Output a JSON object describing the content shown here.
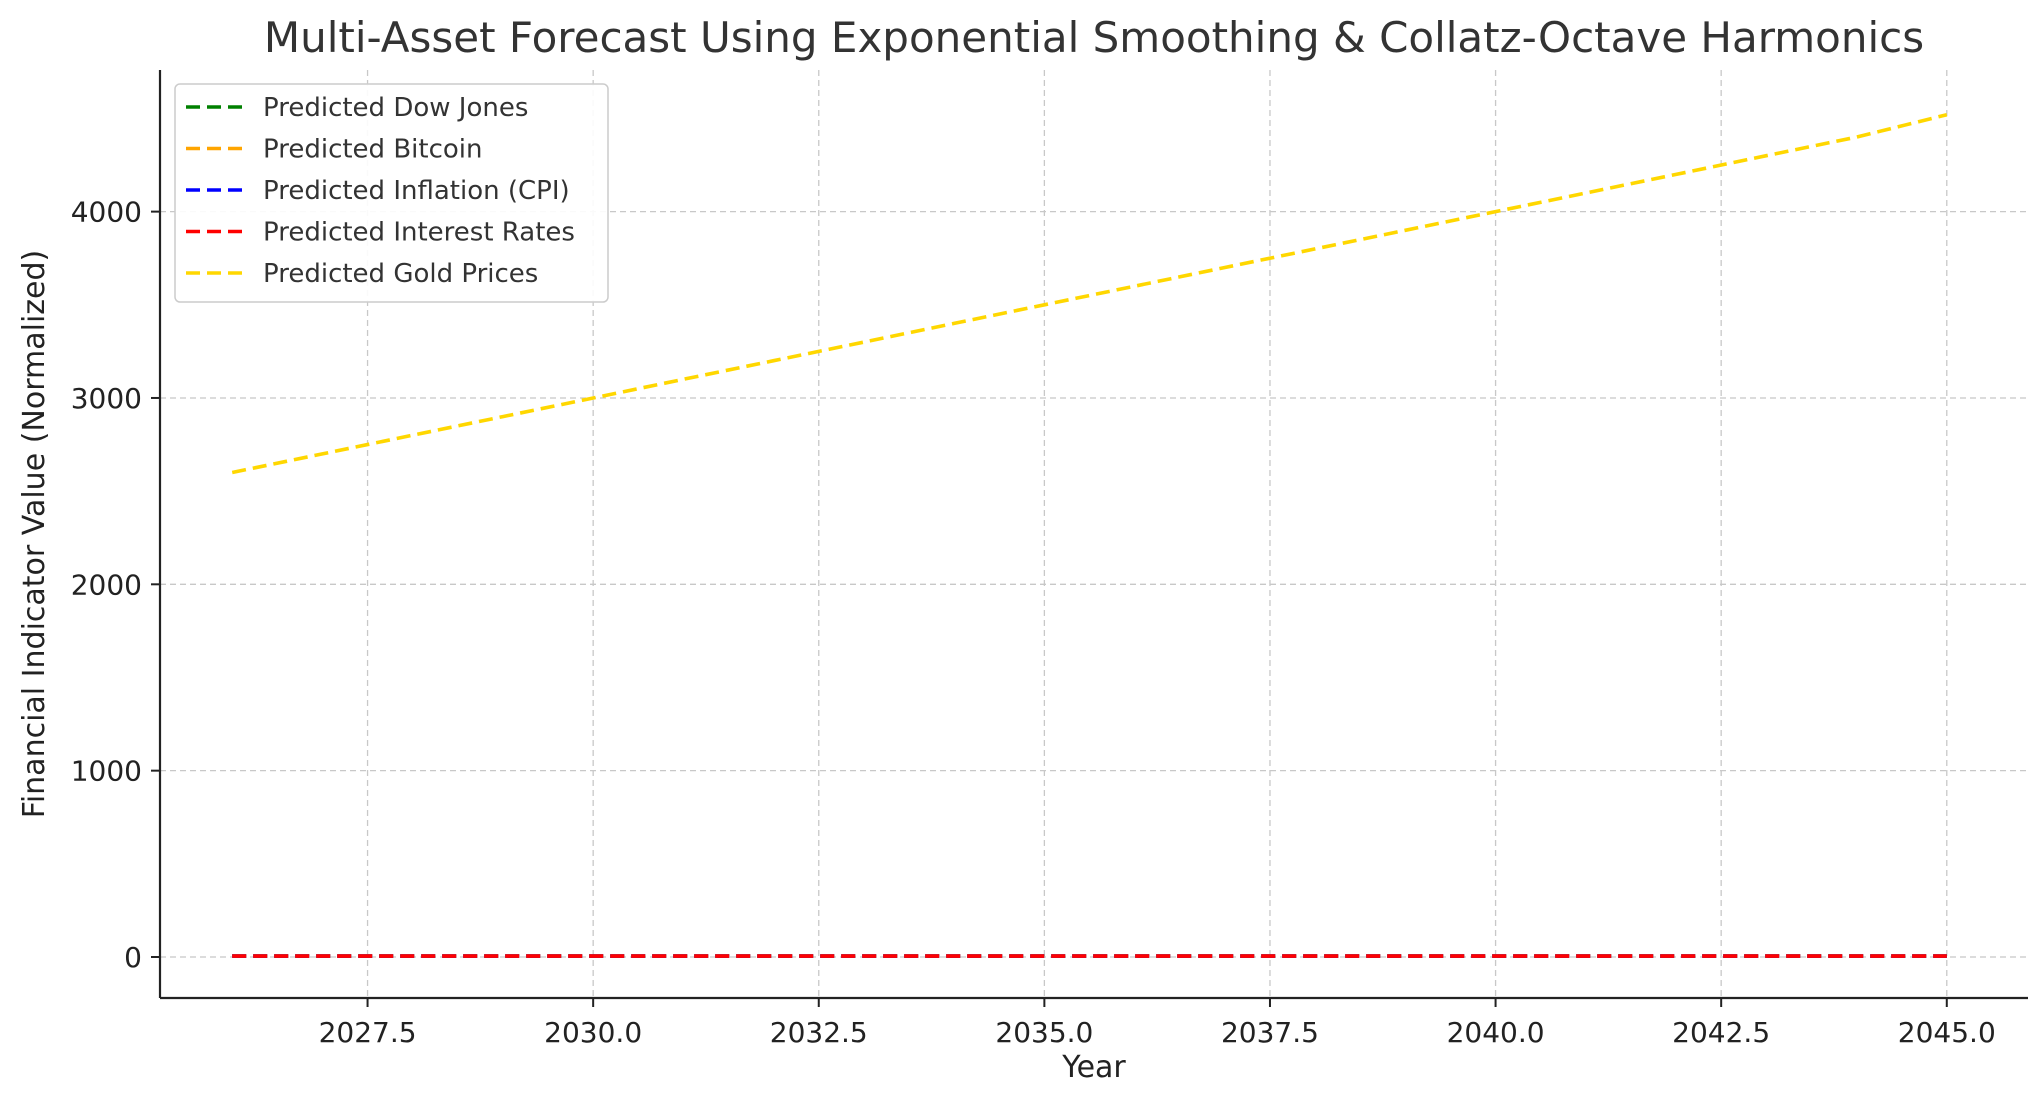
{
  "chart_data": {
    "type": "line",
    "title": "Multi-Asset Forecast Using Exponential Smoothing & Collatz-Octave Harmonics",
    "xlabel": "Year",
    "ylabel": "Financial Indicator Value (Normalized)",
    "xlim": [
      2025.2,
      2045.9
    ],
    "ylim": [
      -220,
      4760
    ],
    "x_ticks": [
      2027.5,
      2030.0,
      2032.5,
      2035.0,
      2037.5,
      2040.0,
      2042.5,
      2045.0
    ],
    "x_tick_labels": [
      "2027.5",
      "2030.0",
      "2032.5",
      "2035.0",
      "2037.5",
      "2040.0",
      "2042.5",
      "2045.0"
    ],
    "y_ticks": [
      0,
      1000,
      2000,
      3000,
      4000
    ],
    "y_tick_labels": [
      "0",
      "1000",
      "2000",
      "3000",
      "4000"
    ],
    "grid": true,
    "legend_position": "top-left",
    "x": [
      2026,
      2027,
      2028,
      2029,
      2030,
      2031,
      2032,
      2033,
      2034,
      2035,
      2036,
      2037,
      2038,
      2039,
      2040,
      2041,
      2042,
      2043,
      2044,
      2045
    ],
    "series": [
      {
        "name": "Predicted Dow Jones",
        "color": "#008000",
        "values": [
          5,
          5,
          5,
          5,
          5,
          5,
          5,
          5,
          5,
          5,
          5,
          5,
          5,
          5,
          5,
          5,
          5,
          5,
          5,
          5
        ]
      },
      {
        "name": "Predicted Bitcoin",
        "color": "#ffa500",
        "values": [
          5,
          5,
          5,
          5,
          5,
          5,
          5,
          5,
          5,
          5,
          5,
          5,
          5,
          5,
          5,
          5,
          5,
          5,
          5,
          5
        ]
      },
      {
        "name": "Predicted Inflation (CPI)",
        "color": "#0000ff",
        "values": [
          5,
          5,
          5,
          5,
          5,
          5,
          5,
          5,
          5,
          5,
          5,
          5,
          5,
          5,
          5,
          5,
          5,
          5,
          5,
          5
        ]
      },
      {
        "name": "Predicted Interest Rates",
        "color": "#ff0000",
        "values": [
          5,
          5,
          5,
          5,
          5,
          5,
          5,
          5,
          5,
          5,
          5,
          5,
          5,
          5,
          5,
          5,
          5,
          5,
          5,
          5
        ]
      },
      {
        "name": "Predicted Gold Prices",
        "color": "#ffd700",
        "values": [
          2600,
          2700,
          2800,
          2900,
          3000,
          3100,
          3200,
          3300,
          3400,
          3500,
          3600,
          3700,
          3800,
          3900,
          4000,
          4100,
          4200,
          4300,
          4400,
          4520
        ]
      }
    ]
  }
}
